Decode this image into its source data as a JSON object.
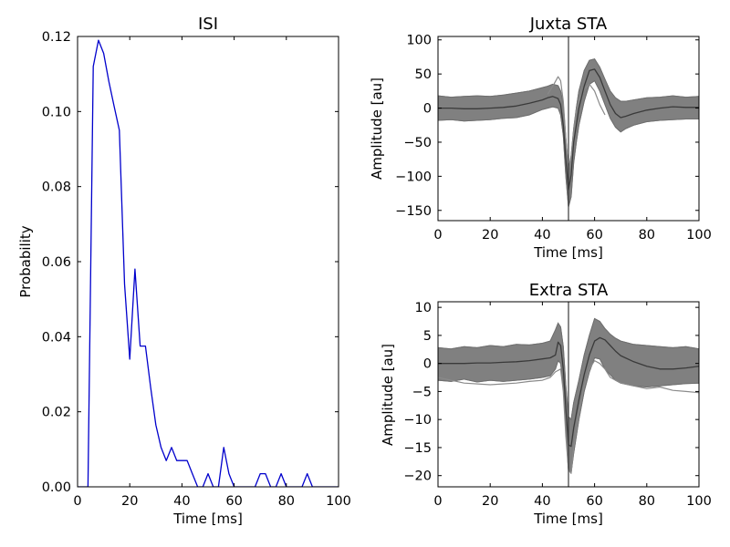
{
  "chart_data": [
    {
      "id": "isi",
      "type": "line",
      "title": "ISI",
      "xlabel": "Time [ms]",
      "ylabel": "Probability",
      "xlim": [
        0,
        100
      ],
      "ylim": [
        0,
        0.12
      ],
      "xticks": [
        0,
        20,
        40,
        60,
        80,
        100
      ],
      "xtick_labels": [
        "0",
        "20",
        "40",
        "60",
        "80",
        "100"
      ],
      "yticks": [
        0,
        0.02,
        0.04,
        0.06,
        0.08,
        0.1,
        0.12
      ],
      "ytick_labels": [
        "0.00",
        "0.02",
        "0.04",
        "0.06",
        "0.08",
        "0.10",
        "0.12"
      ],
      "grid": false,
      "series": [
        {
          "color": "#0000cc",
          "x": [
            0,
            2,
            4,
            6,
            8,
            10,
            12,
            14,
            16,
            18,
            20,
            22,
            24,
            26,
            28,
            30,
            32,
            34,
            36,
            38,
            40,
            42,
            44,
            46,
            48,
            50,
            52,
            54,
            56,
            58,
            60,
            62,
            64,
            66,
            68,
            70,
            72,
            74,
            76,
            78,
            80,
            82,
            84,
            86,
            88,
            90,
            92,
            94,
            96,
            98,
            100
          ],
          "y": [
            0,
            0,
            0,
            0.112,
            0.119,
            0.1155,
            0.108,
            0.1015,
            0.095,
            0.054,
            0.034,
            0.058,
            0.0375,
            0.0375,
            0.0265,
            0.0165,
            0.0105,
            0.007,
            0.0105,
            0.007,
            0.007,
            0.007,
            0.0035,
            0,
            0,
            0.0035,
            0,
            0,
            0.0105,
            0.0035,
            0,
            0,
            0,
            0,
            0,
            0.0035,
            0.0035,
            0,
            0,
            0.0035,
            0,
            0,
            0,
            0,
            0.0035,
            0,
            0,
            0,
            0,
            0,
            0
          ]
        }
      ]
    },
    {
      "id": "juxta",
      "type": "line",
      "title": "Juxta STA",
      "xlabel": "Time [ms]",
      "ylabel": "Amplitude [au]",
      "xlim": [
        0,
        100
      ],
      "ylim": [
        -165,
        105
      ],
      "xticks": [
        0,
        20,
        40,
        60,
        80,
        100
      ],
      "xtick_labels": [
        "0",
        "20",
        "40",
        "60",
        "80",
        "100"
      ],
      "yticks": [
        -150,
        -100,
        -50,
        0,
        50,
        100
      ],
      "ytick_labels": [
        "−150",
        "−100",
        "−50",
        "0",
        "50",
        "100"
      ],
      "grid": false,
      "trigger_x": 50,
      "band_color": "#808080",
      "mean_color": "#3a3a3a",
      "outlier_color": "#8a8a8a",
      "band": {
        "x": [
          0,
          5,
          10,
          15,
          20,
          25,
          30,
          35,
          40,
          42,
          44,
          46,
          47,
          48,
          49,
          50,
          51,
          52,
          53,
          54,
          56,
          58,
          60,
          62,
          64,
          66,
          68,
          70,
          72,
          75,
          80,
          85,
          90,
          95,
          100
        ],
        "upper": [
          18,
          16,
          17,
          18,
          17,
          19,
          22,
          25,
          30,
          32,
          35,
          33,
          25,
          5,
          -45,
          -90,
          -70,
          -30,
          0,
          25,
          55,
          70,
          72,
          60,
          42,
          25,
          15,
          10,
          10,
          12,
          15,
          16,
          18,
          16,
          17
        ],
        "lower": [
          -18,
          -17,
          -19,
          -18,
          -17,
          -15,
          -14,
          -10,
          -2,
          0,
          2,
          0,
          -10,
          -40,
          -100,
          -145,
          -130,
          -80,
          -50,
          -25,
          10,
          35,
          40,
          25,
          5,
          -15,
          -28,
          -35,
          -30,
          -25,
          -20,
          -18,
          -17,
          -16,
          -16
        ]
      },
      "mean": {
        "x": [
          0,
          5,
          10,
          15,
          20,
          25,
          30,
          35,
          40,
          42,
          44,
          46,
          47,
          48,
          49,
          50,
          51,
          52,
          53,
          54,
          56,
          58,
          60,
          62,
          64,
          66,
          68,
          70,
          72,
          75,
          80,
          85,
          90,
          95,
          100
        ],
        "y": [
          0,
          0,
          -1,
          -1,
          0,
          1,
          3,
          7,
          12,
          15,
          17,
          14,
          5,
          -25,
          -75,
          -120,
          -98,
          -50,
          -25,
          0,
          32,
          55,
          57,
          45,
          25,
          5,
          -8,
          -14,
          -12,
          -8,
          -3,
          0,
          2,
          1,
          1
        ]
      },
      "outlier": {
        "x": [
          42,
          44,
          46,
          47,
          48,
          49,
          50,
          51,
          52,
          53,
          54,
          56,
          58,
          60,
          62,
          64
        ],
        "y": [
          20,
          32,
          46,
          40,
          10,
          -45,
          -90,
          -75,
          -35,
          -5,
          10,
          28,
          35,
          25,
          5,
          -10
        ]
      }
    },
    {
      "id": "extra",
      "type": "line",
      "title": "Extra STA",
      "xlabel": "Time [ms]",
      "ylabel": "Amplitude [au]",
      "xlim": [
        0,
        100
      ],
      "ylim": [
        -22,
        11
      ],
      "xticks": [
        0,
        20,
        40,
        60,
        80,
        100
      ],
      "xtick_labels": [
        "0",
        "20",
        "40",
        "60",
        "80",
        "100"
      ],
      "yticks": [
        -20,
        -15,
        -10,
        -5,
        0,
        5,
        10
      ],
      "ytick_labels": [
        "−20",
        "−15",
        "−10",
        "−5",
        "0",
        "5",
        "10"
      ],
      "grid": false,
      "trigger_x": 50,
      "band_color": "#808080",
      "mean_color": "#3a3a3a",
      "outlier_color": "#8a8a8a",
      "band": {
        "x": [
          0,
          5,
          10,
          15,
          20,
          25,
          30,
          35,
          40,
          43,
          45,
          46,
          47,
          48,
          49,
          50,
          51,
          52,
          54,
          56,
          58,
          60,
          62,
          64,
          66,
          68,
          70,
          75,
          80,
          85,
          90,
          95,
          100
        ],
        "upper": [
          2.8,
          2.6,
          3.0,
          2.8,
          3.2,
          3.0,
          3.4,
          3.3,
          3.6,
          4.0,
          6.0,
          7.2,
          6.5,
          3.0,
          -4.0,
          -9.5,
          -10.0,
          -7.0,
          -3.0,
          1.5,
          5.0,
          8.0,
          7.5,
          6.2,
          5.2,
          4.5,
          4.0,
          3.4,
          3.2,
          3.0,
          2.8,
          3.0,
          2.6
        ],
        "lower": [
          -3.0,
          -3.2,
          -2.8,
          -3.3,
          -3.0,
          -3.2,
          -3.0,
          -2.8,
          -2.5,
          -2.2,
          -1.0,
          0.5,
          0.0,
          -4.0,
          -12.0,
          -19.0,
          -19.5,
          -16.0,
          -10.0,
          -5.0,
          -1.5,
          1.0,
          0.8,
          -1.0,
          -2.0,
          -3.0,
          -3.5,
          -4.0,
          -4.2,
          -4.0,
          -3.8,
          -3.6,
          -3.5
        ]
      },
      "mean": {
        "x": [
          0,
          5,
          10,
          15,
          20,
          25,
          30,
          35,
          40,
          43,
          45,
          46,
          47,
          48,
          49,
          50,
          51,
          52,
          54,
          56,
          58,
          60,
          62,
          64,
          66,
          68,
          70,
          75,
          80,
          85,
          90,
          95,
          100
        ],
        "y": [
          0,
          0,
          0,
          0.1,
          0.1,
          0.2,
          0.3,
          0.5,
          0.8,
          1.0,
          1.5,
          3.8,
          3.2,
          -1.0,
          -8.0,
          -14.5,
          -14.8,
          -11.5,
          -6.5,
          -2.0,
          1.5,
          4.0,
          4.6,
          4.2,
          3.2,
          2.2,
          1.4,
          0.3,
          -0.5,
          -1.0,
          -1.0,
          -0.8,
          -0.5
        ]
      },
      "outlier": {
        "x": [
          0,
          10,
          20,
          30,
          35,
          40,
          43,
          45,
          47,
          48,
          49,
          50,
          51,
          52,
          54,
          56,
          58,
          60,
          62,
          64,
          66,
          70,
          75,
          80,
          85,
          90,
          95,
          100
        ],
        "y": [
          -2.5,
          -3.5,
          -3.8,
          -3.5,
          -3.2,
          -3.0,
          -2.5,
          -1.5,
          -1.0,
          -5.0,
          -13.0,
          -19.0,
          -19.6,
          -15.0,
          -9.0,
          -4.0,
          -1.0,
          0.5,
          0.0,
          -1.0,
          -2.5,
          -3.5,
          -4.0,
          -4.5,
          -4.2,
          -4.8,
          -5.0,
          -5.2
        ]
      }
    }
  ]
}
